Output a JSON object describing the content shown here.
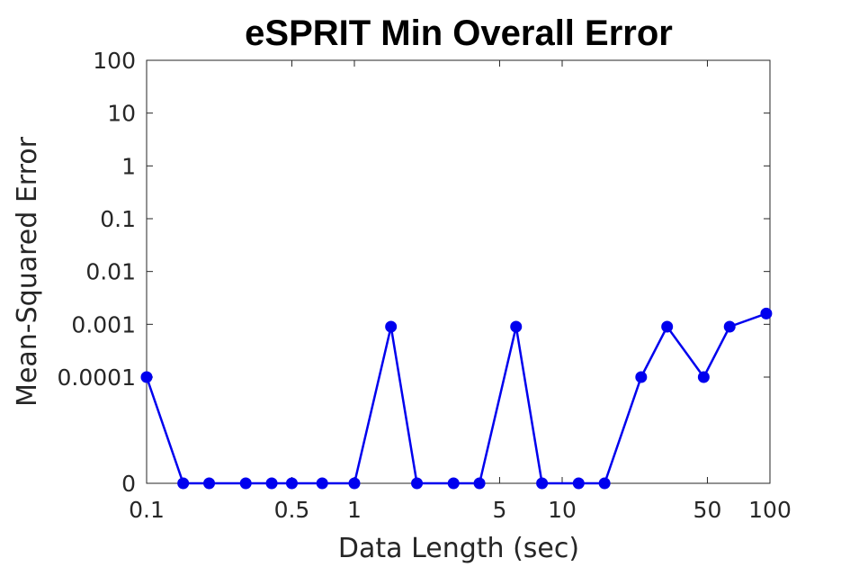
{
  "chart_data": {
    "type": "line",
    "title": "eSPRIT Min Overall Error",
    "xlabel": "Data Length (sec)",
    "ylabel": "Mean-Squared Error",
    "xscale": "log",
    "yscale": "log",
    "xlim": [
      0.1,
      100
    ],
    "x_ticks": [
      {
        "value": 0.1,
        "label": "0.1"
      },
      {
        "value": 0.5,
        "label": "0.5"
      },
      {
        "value": 1,
        "label": "1"
      },
      {
        "value": 5,
        "label": "5"
      },
      {
        "value": 10,
        "label": "10"
      },
      {
        "value": 50,
        "label": "50"
      },
      {
        "value": 100,
        "label": "100"
      }
    ],
    "y_ticks": [
      {
        "value": 100,
        "label": "100"
      },
      {
        "value": 10,
        "label": "10"
      },
      {
        "value": 1,
        "label": "1"
      },
      {
        "value": 0.1,
        "label": "0.1"
      },
      {
        "value": 0.01,
        "label": "0.01"
      },
      {
        "value": 0.001,
        "label": "0.001"
      },
      {
        "value": 0.0001,
        "label": "0.0001"
      },
      {
        "value": 0,
        "label": "0"
      }
    ],
    "grid": false,
    "box": true,
    "series": [
      {
        "color": "#0000ee",
        "marker": "circle",
        "x": [
          0.1,
          0.15,
          0.2,
          0.3,
          0.4,
          0.5,
          0.7,
          1,
          1.5,
          2,
          3,
          4,
          6,
          8,
          12,
          16,
          24,
          32,
          48,
          64,
          96
        ],
        "y": [
          0.0001,
          0,
          0,
          0,
          0,
          0,
          0,
          0,
          0.0009,
          0,
          0,
          0,
          0.0009,
          0,
          0,
          0,
          0.0001,
          0.0009,
          0.0001,
          0.0009,
          0.0016
        ]
      }
    ]
  }
}
